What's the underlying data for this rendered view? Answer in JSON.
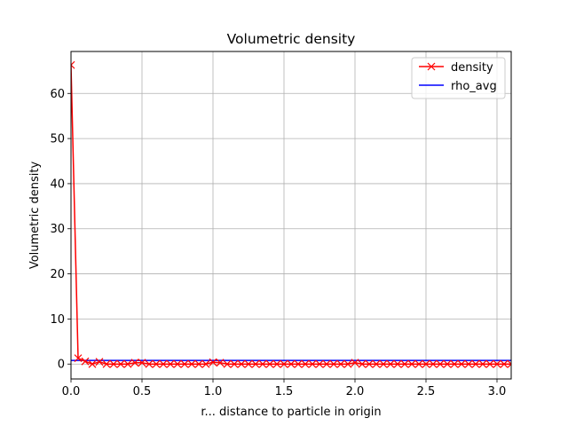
{
  "chart_data": {
    "type": "line",
    "title": "Volumetric density",
    "xlabel": "r... distance to particle in origin",
    "ylabel": "Volumetric density",
    "xlim": [
      0,
      3.1
    ],
    "ylim": [
      -3.3,
      69.3
    ],
    "xticks": [
      0.0,
      0.5,
      1.0,
      1.5,
      2.0,
      2.5,
      3.0
    ],
    "xtick_labels": [
      "0.0",
      "0.5",
      "1.0",
      "1.5",
      "2.0",
      "2.5",
      "3.0"
    ],
    "yticks": [
      0,
      10,
      20,
      30,
      40,
      50,
      60
    ],
    "ytick_labels": [
      "0",
      "10",
      "20",
      "30",
      "40",
      "50",
      "60"
    ],
    "grid": true,
    "legend": "top-right",
    "series": [
      {
        "name": "density",
        "color": "#ff0000",
        "marker": "x",
        "x": [
          0.0,
          0.05,
          0.1,
          0.15,
          0.2,
          0.25,
          0.3,
          0.35,
          0.4,
          0.45,
          0.5,
          0.55,
          0.6,
          0.65,
          0.7,
          0.75,
          0.8,
          0.85,
          0.9,
          0.95,
          1.0,
          1.05,
          1.1,
          1.15,
          1.2,
          1.25,
          1.3,
          1.35,
          1.4,
          1.45,
          1.5,
          1.55,
          1.6,
          1.65,
          1.7,
          1.75,
          1.8,
          1.85,
          1.9,
          1.95,
          2.0,
          2.05,
          2.1,
          2.15,
          2.2,
          2.25,
          2.3,
          2.35,
          2.4,
          2.45,
          2.5,
          2.55,
          2.6,
          2.65,
          2.7,
          2.75,
          2.8,
          2.85,
          2.9,
          2.95,
          3.0,
          3.05,
          3.1
        ],
        "y": [
          66.3,
          1.3,
          0.6,
          0.0,
          0.5,
          0.0,
          0.0,
          0.0,
          0.0,
          0.3,
          0.3,
          0.0,
          0.0,
          0.0,
          0.0,
          0.0,
          0.0,
          0.0,
          0.0,
          0.0,
          0.4,
          0.3,
          0.0,
          0.0,
          0.0,
          0.0,
          0.0,
          0.0,
          0.0,
          0.0,
          0.0,
          0.0,
          0.0,
          0.0,
          0.0,
          0.0,
          0.0,
          0.0,
          0.0,
          0.0,
          0.3,
          0.0,
          0.0,
          0.0,
          0.0,
          0.0,
          0.0,
          0.0,
          0.0,
          0.0,
          0.0,
          0.0,
          0.0,
          0.0,
          0.0,
          0.0,
          0.0,
          0.0,
          0.0,
          0.0,
          0.0,
          0.0,
          0.0
        ]
      },
      {
        "name": "rho_avg",
        "color": "#0000ff",
        "constant_y": 0.8
      }
    ]
  }
}
